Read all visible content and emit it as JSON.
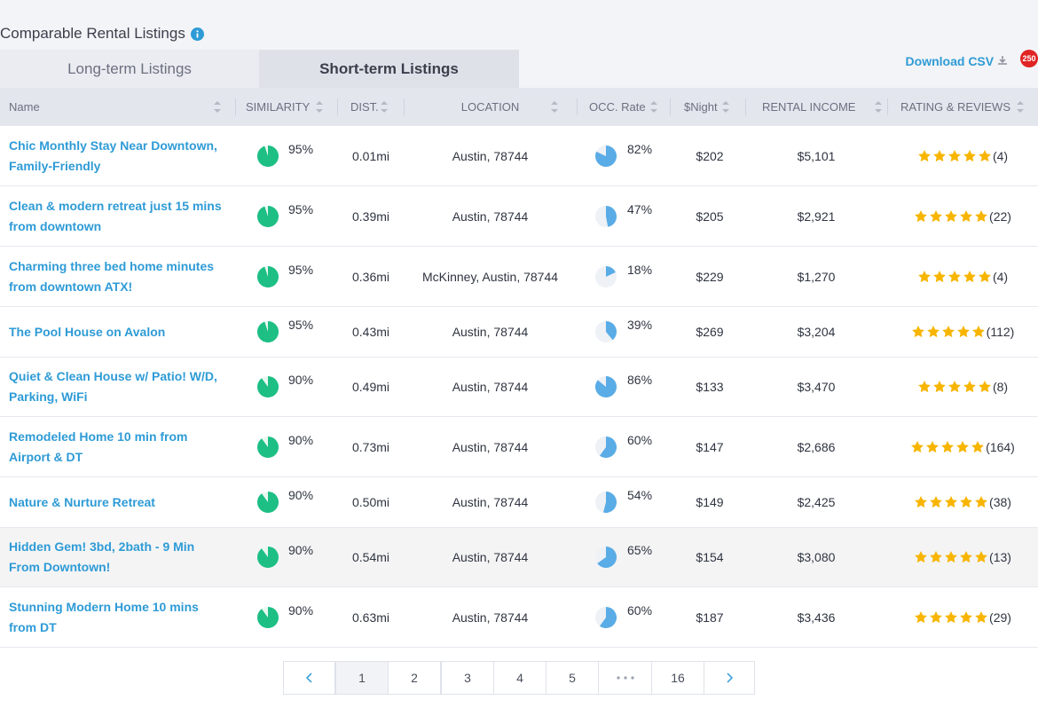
{
  "header": {
    "title": "Comparable Rental Listings",
    "download": "Download CSV",
    "badge": "250"
  },
  "tabs": [
    "Long-term Listings",
    "Short-term Listings"
  ],
  "table": {
    "columns": [
      "Name",
      "SIMILARITY",
      "DIST.",
      "LOCATION",
      "OCC. Rate",
      "$Night",
      "RENTAL INCOME",
      "RATING & REVIEWS"
    ],
    "rows": [
      [
        "Chic Monthly Stay Near Downtown, Family-Friendly",
        "95%",
        "0.01mi",
        "Austin, 78744",
        "82%",
        "$202",
        "$5,101",
        "(4)"
      ],
      [
        "Clean & modern retreat just 15 mins from downtown",
        "95%",
        "0.39mi",
        "Austin, 78744",
        "47%",
        "$205",
        "$2,921",
        "(22)"
      ],
      [
        "Charming three bed home minutes from downtown ATX!",
        "95%",
        "0.36mi",
        "McKinney, Austin, 78744",
        "18%",
        "$229",
        "$1,270",
        "(4)"
      ],
      [
        "The Pool House on Avalon",
        "95%",
        "0.43mi",
        "Austin, 78744",
        "39%",
        "$269",
        "$3,204",
        "(112)"
      ],
      [
        "Quiet & Clean House w/ Patio! W/D, Parking, WiFi",
        "90%",
        "0.49mi",
        "Austin, 78744",
        "86%",
        "$133",
        "$3,470",
        "(8)"
      ],
      [
        "Remodeled Home 10 min from Airport & DT",
        "90%",
        "0.73mi",
        "Austin, 78744",
        "60%",
        "$147",
        "$2,686",
        "(164)"
      ],
      [
        "Nature & Nurture Retreat",
        "90%",
        "0.50mi",
        "Austin, 78744",
        "54%",
        "$149",
        "$2,425",
        "(38)"
      ],
      [
        "Hidden Gem! 3bd, 2bath - 9 Min From Downtown!",
        "90%",
        "0.54mi",
        "Austin, 78744",
        "65%",
        "$154",
        "$3,080",
        "(13)"
      ],
      [
        "Stunning Modern Home 10 mins from DT",
        "90%",
        "0.63mi",
        "Austin, 78744",
        "60%",
        "$187",
        "$3,436",
        "(29)"
      ]
    ]
  },
  "pagination": [
    "1",
    "2",
    "3",
    "4",
    "5",
    "16"
  ]
}
